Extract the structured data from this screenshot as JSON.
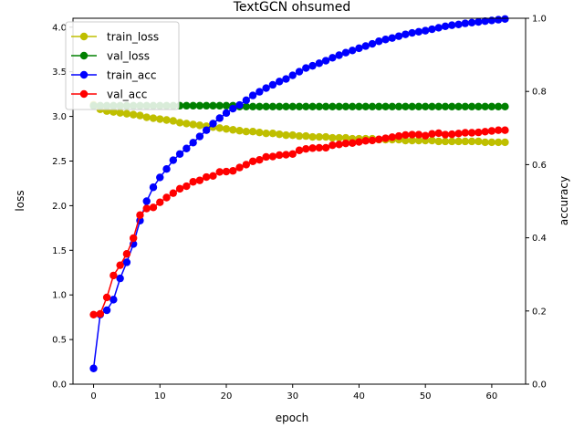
{
  "chart_data": {
    "type": "line",
    "title": "TextGCN ohsumed",
    "xlabel": "epoch",
    "ylabel": "loss",
    "y2label": "accuracy",
    "xlim": [
      -3.1,
      65.1
    ],
    "ylim": [
      0,
      4.1
    ],
    "y2lim": [
      0,
      1.0
    ],
    "xticks": [
      "0",
      "10",
      "20",
      "30",
      "40",
      "50",
      "60"
    ],
    "yticks": [
      "0.0",
      "0.5",
      "1.0",
      "1.5",
      "2.0",
      "2.5",
      "3.0",
      "3.5",
      "4.0"
    ],
    "y2ticks": [
      "0.0",
      "0.2",
      "0.4",
      "0.6",
      "0.8",
      "1.0"
    ],
    "legend_position": "top-left",
    "series": [
      {
        "name": "train_loss",
        "axis": "left",
        "color": "#bfbf00",
        "values": [
          3.13,
          3.08,
          3.06,
          3.05,
          3.04,
          3.03,
          3.02,
          3.01,
          2.99,
          2.98,
          2.97,
          2.96,
          2.95,
          2.93,
          2.92,
          2.91,
          2.9,
          2.89,
          2.88,
          2.87,
          2.86,
          2.85,
          2.84,
          2.83,
          2.83,
          2.82,
          2.81,
          2.81,
          2.8,
          2.79,
          2.79,
          2.78,
          2.78,
          2.77,
          2.77,
          2.77,
          2.76,
          2.76,
          2.76,
          2.75,
          2.75,
          2.75,
          2.75,
          2.74,
          2.74,
          2.74,
          2.74,
          2.73,
          2.73,
          2.73,
          2.73,
          2.73,
          2.72,
          2.72,
          2.72,
          2.72,
          2.72,
          2.72,
          2.72,
          2.71,
          2.71,
          2.71,
          2.71
        ]
      },
      {
        "name": "val_loss",
        "axis": "left",
        "color": "#008000",
        "values": [
          3.12,
          3.12,
          3.12,
          3.12,
          3.12,
          3.12,
          3.12,
          3.12,
          3.12,
          3.12,
          3.12,
          3.12,
          3.12,
          3.12,
          3.12,
          3.12,
          3.12,
          3.12,
          3.12,
          3.12,
          3.12,
          3.12,
          3.11,
          3.11,
          3.11,
          3.11,
          3.11,
          3.11,
          3.11,
          3.11,
          3.11,
          3.11,
          3.11,
          3.11,
          3.11,
          3.11,
          3.11,
          3.11,
          3.11,
          3.11,
          3.11,
          3.11,
          3.11,
          3.11,
          3.11,
          3.11,
          3.11,
          3.11,
          3.11,
          3.11,
          3.11,
          3.11,
          3.11,
          3.11,
          3.11,
          3.11,
          3.11,
          3.11,
          3.11,
          3.11,
          3.11,
          3.11,
          3.11
        ]
      },
      {
        "name": "train_acc",
        "axis": "right",
        "color": "#0000ff",
        "values": [
          0.043,
          0.19,
          0.202,
          0.231,
          0.289,
          0.333,
          0.383,
          0.447,
          0.5,
          0.538,
          0.565,
          0.588,
          0.612,
          0.629,
          0.644,
          0.66,
          0.677,
          0.694,
          0.712,
          0.727,
          0.741,
          0.753,
          0.763,
          0.776,
          0.789,
          0.799,
          0.809,
          0.818,
          0.827,
          0.834,
          0.844,
          0.854,
          0.864,
          0.87,
          0.877,
          0.884,
          0.892,
          0.899,
          0.906,
          0.912,
          0.918,
          0.924,
          0.93,
          0.937,
          0.942,
          0.946,
          0.951,
          0.956,
          0.96,
          0.963,
          0.966,
          0.97,
          0.974,
          0.978,
          0.981,
          0.983,
          0.986,
          0.988,
          0.99,
          0.992,
          0.994,
          0.996,
          0.998
        ]
      },
      {
        "name": "val_acc",
        "axis": "right",
        "color": "#ff0000",
        "values": [
          0.19,
          0.192,
          0.237,
          0.297,
          0.325,
          0.356,
          0.399,
          0.462,
          0.48,
          0.483,
          0.497,
          0.51,
          0.522,
          0.534,
          0.541,
          0.553,
          0.557,
          0.566,
          0.569,
          0.58,
          0.581,
          0.583,
          0.592,
          0.6,
          0.609,
          0.613,
          0.621,
          0.622,
          0.626,
          0.627,
          0.629,
          0.639,
          0.643,
          0.645,
          0.646,
          0.646,
          0.653,
          0.655,
          0.658,
          0.659,
          0.662,
          0.665,
          0.666,
          0.669,
          0.672,
          0.675,
          0.678,
          0.681,
          0.682,
          0.682,
          0.679,
          0.684,
          0.686,
          0.682,
          0.683,
          0.685,
          0.687,
          0.687,
          0.688,
          0.69,
          0.692,
          0.694,
          0.694
        ]
      }
    ]
  }
}
